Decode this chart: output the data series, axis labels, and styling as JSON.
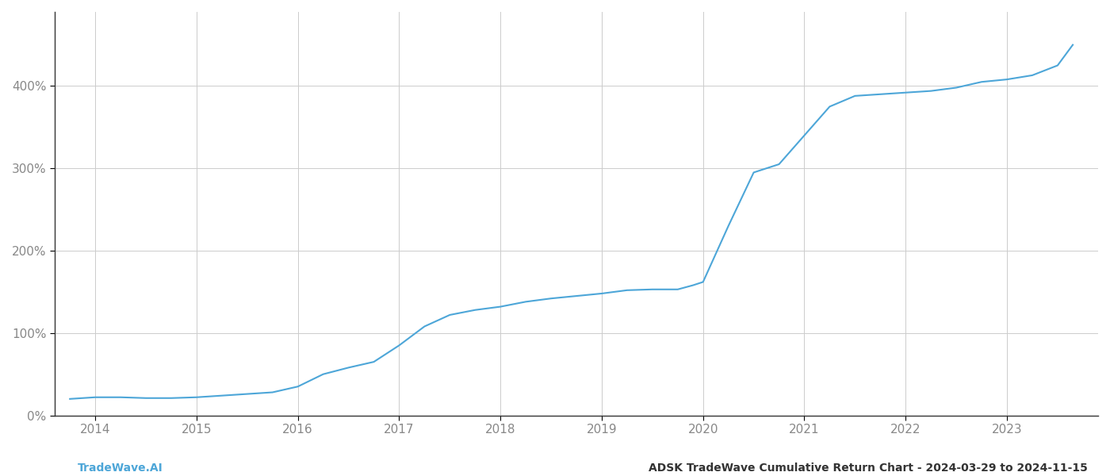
{
  "title": "ADSK TradeWave Cumulative Return Chart - 2024-03-29 to 2024-11-15",
  "watermark": "TradeWave.AI",
  "line_color": "#4da6d8",
  "background_color": "#ffffff",
  "grid_color": "#cccccc",
  "x_years": [
    2014,
    2015,
    2016,
    2017,
    2018,
    2019,
    2020,
    2021,
    2022,
    2023
  ],
  "x_data": [
    2013.75,
    2014.0,
    2014.25,
    2014.5,
    2014.75,
    2015.0,
    2015.25,
    2015.5,
    2015.75,
    2016.0,
    2016.25,
    2016.5,
    2016.75,
    2017.0,
    2017.25,
    2017.5,
    2017.75,
    2018.0,
    2018.25,
    2018.5,
    2018.75,
    2019.0,
    2019.25,
    2019.5,
    2019.75,
    2019.9,
    2020.0,
    2020.25,
    2020.5,
    2020.75,
    2021.0,
    2021.25,
    2021.5,
    2021.75,
    2022.0,
    2022.25,
    2022.5,
    2022.75,
    2023.0,
    2023.25,
    2023.5,
    2023.65
  ],
  "y_data": [
    20,
    22,
    22,
    21,
    21,
    22,
    24,
    26,
    28,
    35,
    50,
    58,
    65,
    85,
    108,
    122,
    128,
    132,
    138,
    142,
    145,
    148,
    152,
    153,
    153,
    158,
    162,
    230,
    295,
    305,
    340,
    375,
    388,
    390,
    392,
    394,
    398,
    405,
    408,
    413,
    425,
    450
  ],
  "ylim": [
    0,
    490
  ],
  "yticks": [
    0,
    100,
    200,
    300,
    400
  ],
  "xlim": [
    2013.6,
    2023.9
  ],
  "title_fontsize": 10,
  "watermark_fontsize": 10,
  "tick_fontsize": 11,
  "axis_color": "#888888",
  "spine_color": "#333333",
  "line_width": 1.5
}
